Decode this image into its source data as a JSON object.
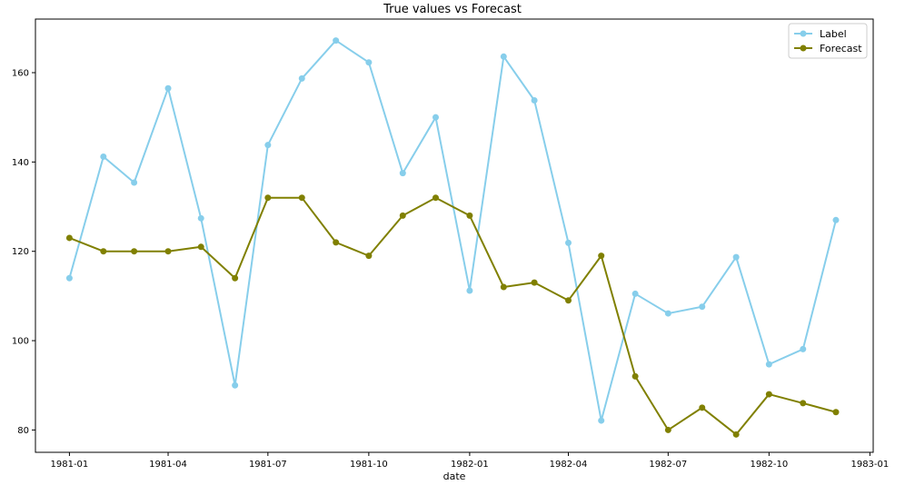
{
  "chart_data": {
    "type": "line",
    "title": "True values vs Forecast",
    "xlabel": "date",
    "ylabel": "",
    "x": [
      "1981-01",
      "1981-02",
      "1981-03",
      "1981-04",
      "1981-05",
      "1981-06",
      "1981-07",
      "1981-08",
      "1981-09",
      "1981-10",
      "1981-11",
      "1981-12",
      "1982-01",
      "1982-02",
      "1982-03",
      "1982-04",
      "1982-05",
      "1982-06",
      "1982-07",
      "1982-08",
      "1982-09",
      "1982-10",
      "1982-11",
      "1982-12"
    ],
    "x_ticks": [
      "1981-01",
      "1981-04",
      "1981-07",
      "1981-10",
      "1982-01",
      "1982-04",
      "1982-07",
      "1982-10",
      "1983-01"
    ],
    "y_ticks": [
      80,
      100,
      120,
      140,
      160
    ],
    "ylim": [
      75,
      172
    ],
    "xlim": [
      "1980-12-01",
      "1983-01-04"
    ],
    "grid": false,
    "legend_position": "top-right",
    "series": [
      {
        "name": "Label",
        "color": "#87ceeb",
        "values": [
          114,
          141.2,
          135.4,
          156.5,
          127.4,
          90,
          143.8,
          158.7,
          167.2,
          162.3,
          137.5,
          150,
          111.2,
          163.6,
          153.8,
          121.9,
          82.1,
          110.5,
          106.1,
          107.6,
          118.7,
          94.7,
          98.1,
          127
        ]
      },
      {
        "name": "Forecast",
        "color": "#808000",
        "values": [
          123,
          120,
          120,
          120,
          121,
          114,
          132,
          132,
          122,
          119,
          128,
          132,
          128,
          112,
          113,
          109,
          119,
          92,
          80,
          85,
          79,
          88,
          86,
          84
        ]
      }
    ]
  }
}
